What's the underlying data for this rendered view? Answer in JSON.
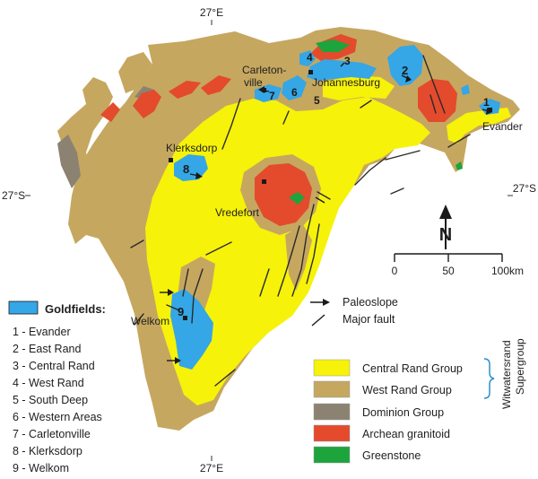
{
  "coordinates": {
    "top_lon": "27°E",
    "bottom_lon": "27°E",
    "left_lat": "27°S",
    "right_lat": "27°S"
  },
  "places": {
    "carletonville": [
      "Carleton-",
      "ville"
    ],
    "johannesburg": "Johannesburg",
    "evander": "Evander",
    "klerksdorp": "Klerksdorp",
    "vredefort": "Vredefort",
    "welkom": "Welkom"
  },
  "goldfield_numbers": [
    "1",
    "2",
    "3",
    "4",
    "5",
    "6",
    "7",
    "8",
    "9"
  ],
  "north_arrow": {
    "letter": "N"
  },
  "scale_bar": {
    "labels": [
      "0",
      "50",
      "100km"
    ]
  },
  "symbols": [
    {
      "key": "paleoslope",
      "label": "Paleoslope"
    },
    {
      "key": "major_fault",
      "label": "Major fault"
    }
  ],
  "goldfields_legend": {
    "title": "Goldfields:",
    "items": [
      "1 - Evander",
      "2 - East Rand",
      "3 - Central Rand",
      "4 - West Rand",
      "5 - South Deep",
      "6 - Western Areas",
      "7 - Carletonville",
      "8 - Klerksdorp",
      "9 - Welkom"
    ]
  },
  "geology_legend": {
    "supergroup": [
      "Witwatersrand",
      "Supergroup"
    ],
    "items": [
      {
        "label": "Central Rand Group",
        "color": "#f6f20a"
      },
      {
        "label": "West Rand Group",
        "color": "#c6a760"
      },
      {
        "label": "Dominion Group",
        "color": "#8c8272"
      },
      {
        "label": "Archean granitoid",
        "color": "#e34b2c"
      },
      {
        "label": "Greenstone",
        "color": "#1ea43c"
      }
    ]
  },
  "colors": {
    "goldfields": "#35a6e6",
    "fault": "#2a2a2a",
    "supergroup_brace": "#2b8ec9"
  }
}
